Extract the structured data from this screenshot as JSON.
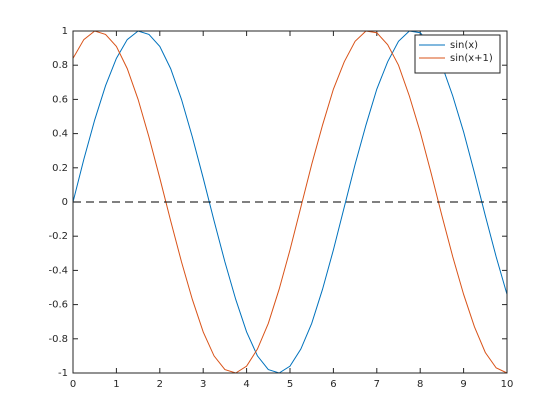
{
  "chart_data": {
    "type": "line",
    "x": [
      0,
      0.25,
      0.5,
      0.75,
      1,
      1.25,
      1.5,
      1.75,
      2,
      2.25,
      2.5,
      2.75,
      3,
      3.25,
      3.5,
      3.75,
      4,
      4.25,
      4.5,
      4.75,
      5,
      5.25,
      5.5,
      5.75,
      6,
      6.25,
      6.5,
      6.75,
      7,
      7.25,
      7.5,
      7.75,
      8,
      8.25,
      8.5,
      8.75,
      9,
      9.25,
      9.5,
      9.75,
      10
    ],
    "series": [
      {
        "name": "sin(x)",
        "color": "#0072bd",
        "values": [
          0,
          0.25,
          0.48,
          0.68,
          0.84,
          0.95,
          1,
          0.98,
          0.91,
          0.78,
          0.6,
          0.38,
          0.14,
          -0.11,
          -0.35,
          -0.57,
          -0.76,
          -0.9,
          -0.98,
          -1,
          -0.96,
          -0.86,
          -0.71,
          -0.51,
          -0.28,
          -0.03,
          0.22,
          0.45,
          0.66,
          0.82,
          0.94,
          1,
          0.99,
          0.92,
          0.8,
          0.62,
          0.41,
          0.17,
          -0.08,
          -0.32,
          -0.54
        ]
      },
      {
        "name": "sin(x+1)",
        "color": "#d95319",
        "values": [
          0.84,
          0.95,
          1,
          0.98,
          0.91,
          0.78,
          0.6,
          0.38,
          0.14,
          -0.11,
          -0.35,
          -0.57,
          -0.76,
          -0.9,
          -0.98,
          -1,
          -0.96,
          -0.86,
          -0.71,
          -0.51,
          -0.28,
          -0.03,
          0.22,
          0.45,
          0.66,
          0.82,
          0.94,
          1,
          0.99,
          0.92,
          0.8,
          0.62,
          0.41,
          0.17,
          -0.08,
          -0.32,
          -0.54,
          -0.73,
          -0.88,
          -0.97,
          -1
        ]
      }
    ],
    "hline": 0,
    "xlim": [
      0,
      10
    ],
    "xticks": [
      0,
      1,
      2,
      3,
      4,
      5,
      6,
      7,
      8,
      9,
      10
    ],
    "ylim": [
      -1,
      1
    ],
    "yticks": [
      -1,
      -0.8,
      -0.6,
      -0.4,
      -0.2,
      0,
      0.2,
      0.4,
      0.6,
      0.8,
      1
    ],
    "legend": "northeast",
    "grid": false
  }
}
